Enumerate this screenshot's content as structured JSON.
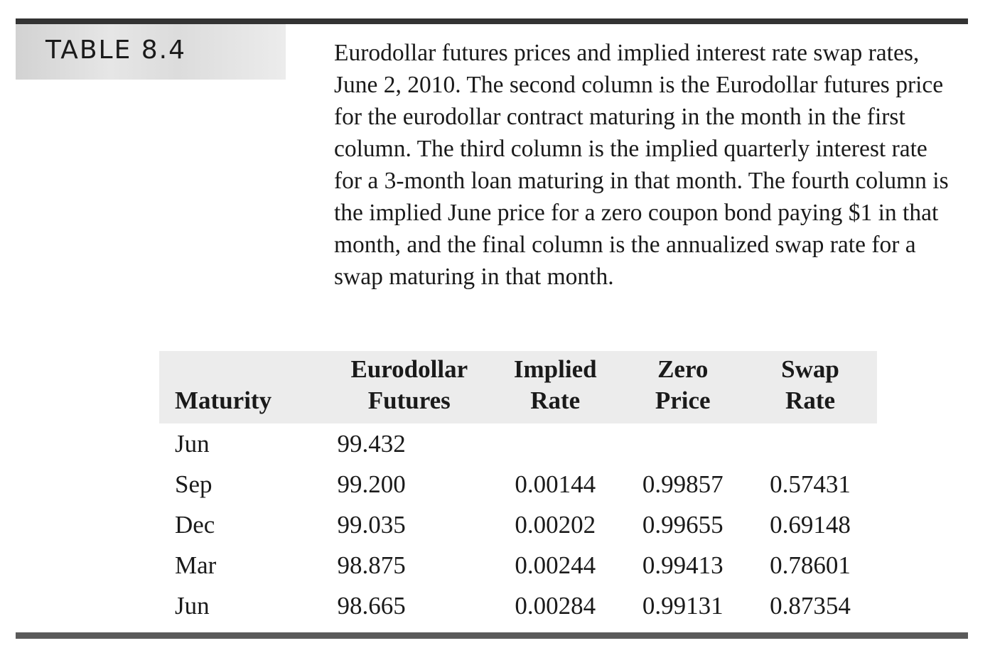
{
  "table_label": "TABLE 8.4",
  "caption": "Eurodollar futures prices and implied interest rate swap rates, June 2, 2010. The second column is the Eurodollar futures price for the eurodollar contract maturing in the month in the first column. The third column is the implied quarterly interest rate for a 3-month loan maturing in that month. The fourth column is the implied June price for a zero coupon bond paying $1 in that month, and the final column is the annualized swap rate for a swap maturing in that month.",
  "headers": [
    {
      "line1": "",
      "line2": "Maturity"
    },
    {
      "line1": "Eurodollar",
      "line2": "Futures"
    },
    {
      "line1": "Implied",
      "line2": "Rate"
    },
    {
      "line1": "Zero",
      "line2": "Price"
    },
    {
      "line1": "Swap",
      "line2": "Rate"
    }
  ],
  "rows": [
    [
      "Jun",
      "99.432",
      "",
      "",
      ""
    ],
    [
      "Sep",
      "99.200",
      "0.00144",
      "0.99857",
      "0.57431"
    ],
    [
      "Dec",
      "99.035",
      "0.00202",
      "0.99655",
      "0.69148"
    ],
    [
      "Mar",
      "98.875",
      "0.00244",
      "0.99413",
      "0.78601"
    ],
    [
      "Jun",
      "98.665",
      "0.00284",
      "0.99131",
      "0.87354"
    ]
  ]
}
